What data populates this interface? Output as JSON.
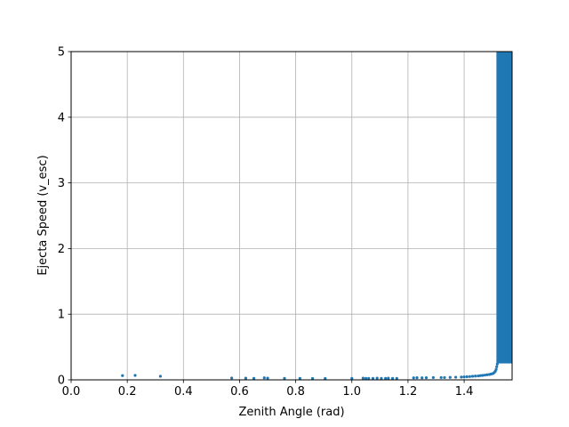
{
  "chart_data": {
    "type": "scatter",
    "title": "",
    "xlabel": "Zenith Angle (rad)",
    "ylabel": "Ejecta Speed (v_esc)",
    "xlim": [
      0.0,
      1.5708
    ],
    "ylim": [
      0,
      5
    ],
    "x_ticks": [
      0.0,
      0.2,
      0.4,
      0.6,
      0.8,
      1.0,
      1.2,
      1.4
    ],
    "x_tick_labels": [
      "0.0",
      "0.2",
      "0.4",
      "0.6",
      "0.8",
      "1.0",
      "1.2",
      "1.4"
    ],
    "y_ticks": [
      0,
      1,
      2,
      3,
      4,
      5
    ],
    "y_tick_labels": [
      "0",
      "1",
      "2",
      "3",
      "4",
      "5"
    ],
    "grid": true,
    "legend": "none",
    "marker_color": "#1f77b4",
    "series": [
      {
        "points": [
          [
            0.183,
            0.065
          ],
          [
            0.228,
            0.068
          ],
          [
            0.318,
            0.055
          ],
          [
            0.572,
            0.028
          ],
          [
            0.622,
            0.025
          ],
          [
            0.651,
            0.022
          ],
          [
            0.688,
            0.03
          ],
          [
            0.7,
            0.025
          ],
          [
            0.76,
            0.022
          ],
          [
            0.815,
            0.022
          ],
          [
            0.86,
            0.02
          ],
          [
            0.905,
            0.02
          ],
          [
            1.0,
            0.022
          ],
          [
            1.04,
            0.025
          ],
          [
            1.05,
            0.022
          ],
          [
            1.06,
            0.022
          ],
          [
            1.075,
            0.022
          ],
          [
            1.09,
            0.025
          ],
          [
            1.105,
            0.022
          ],
          [
            1.12,
            0.022
          ],
          [
            1.13,
            0.025
          ],
          [
            1.145,
            0.022
          ],
          [
            1.16,
            0.022
          ],
          [
            1.22,
            0.03
          ],
          [
            1.232,
            0.032
          ],
          [
            1.25,
            0.03
          ],
          [
            1.265,
            0.032
          ],
          [
            1.29,
            0.035
          ],
          [
            1.318,
            0.035
          ],
          [
            1.33,
            0.035
          ],
          [
            1.35,
            0.038
          ],
          [
            1.37,
            0.04
          ],
          [
            1.39,
            0.042
          ],
          [
            1.4,
            0.045
          ],
          [
            1.41,
            0.048
          ],
          [
            1.42,
            0.05
          ],
          [
            1.43,
            0.055
          ],
          [
            1.44,
            0.058
          ],
          [
            1.45,
            0.06
          ],
          [
            1.458,
            0.065
          ],
          [
            1.466,
            0.068
          ],
          [
            1.474,
            0.072
          ],
          [
            1.482,
            0.078
          ],
          [
            1.49,
            0.082
          ],
          [
            1.496,
            0.088
          ],
          [
            1.502,
            0.095
          ],
          [
            1.507,
            0.11
          ],
          [
            1.511,
            0.13
          ],
          [
            1.514,
            0.16
          ],
          [
            1.516,
            0.2
          ],
          [
            1.518,
            0.24
          ],
          [
            1.52,
            0.29
          ]
        ],
        "dense_band": {
          "description": "Dense concentration of points",
          "x_range": [
            1.515,
            1.5708
          ],
          "y_range": [
            0.25,
            5.0
          ]
        }
      }
    ]
  }
}
